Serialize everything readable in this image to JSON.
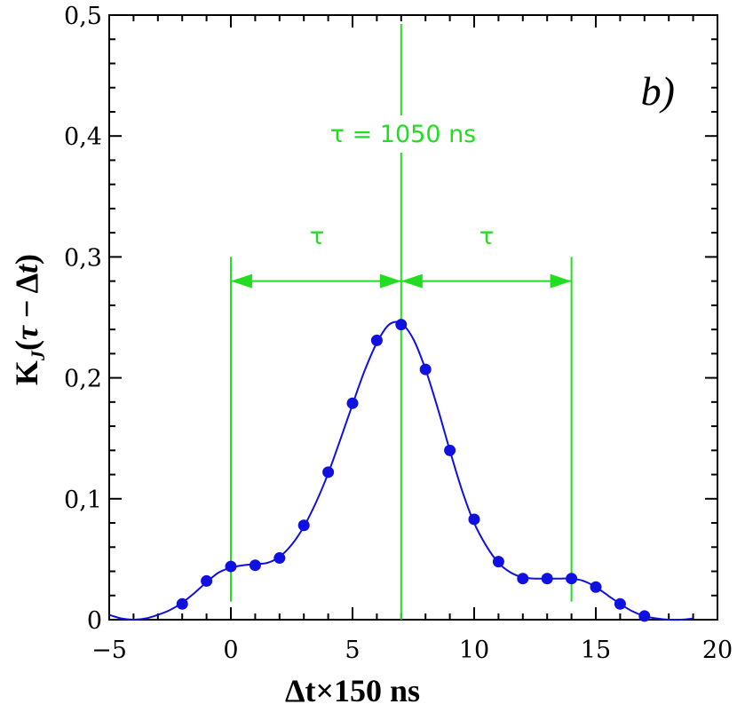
{
  "chart_data": {
    "type": "scatter",
    "xlabel": "Δt×150 ns",
    "ylabel": "K_J(τ − Δt)",
    "panel_label": "b)",
    "xlim": [
      -5,
      20
    ],
    "ylim": [
      0,
      0.5
    ],
    "x_ticks": [
      -5,
      0,
      5,
      10,
      15,
      20
    ],
    "x_tick_labels": [
      "−5",
      "0",
      "5",
      "10",
      "15",
      "20"
    ],
    "y_ticks": [
      0,
      0.1,
      0.2,
      0.3,
      0.4,
      0.5
    ],
    "y_tick_labels": [
      "0",
      "0,1",
      "0,2",
      "0,3",
      "0,4",
      "0,5"
    ],
    "grid": false,
    "colors": {
      "points": "#1010e0",
      "curve": "#1010e0",
      "annotation": "#22dd22"
    },
    "series": [
      {
        "kind": "points",
        "x": [
          -2,
          -1,
          0,
          1,
          2,
          3,
          4,
          5,
          6,
          7,
          8,
          9,
          10,
          11,
          12,
          13,
          14,
          15,
          16,
          17
        ],
        "y": [
          0.013,
          0.032,
          0.044,
          0.045,
          0.051,
          0.078,
          0.122,
          0.179,
          0.231,
          0.244,
          0.207,
          0.14,
          0.083,
          0.048,
          0.034,
          0.034,
          0.034,
          0.027,
          0.013,
          0.003
        ]
      },
      {
        "kind": "fit-curve",
        "x": [
          -5,
          -4.5,
          -4,
          -3.5,
          -3,
          -2.5,
          -2,
          -1.5,
          -1,
          -0.5,
          0,
          0.5,
          1,
          1.5,
          2,
          2.5,
          3,
          3.5,
          4,
          4.5,
          5,
          5.5,
          6,
          6.5,
          7,
          7.5,
          8,
          8.5,
          9,
          9.5,
          10,
          10.5,
          11,
          11.5,
          12,
          12.5,
          13,
          13.5,
          14,
          14.5,
          15,
          15.5,
          16,
          16.5,
          17,
          17.5,
          18,
          18.5,
          19
        ],
        "y": [
          0.004,
          0.001,
          0.0,
          0.001,
          0.004,
          0.008,
          0.014,
          0.022,
          0.031,
          0.039,
          0.043,
          0.045,
          0.046,
          0.047,
          0.052,
          0.062,
          0.077,
          0.097,
          0.121,
          0.149,
          0.178,
          0.206,
          0.229,
          0.244,
          0.245,
          0.232,
          0.207,
          0.175,
          0.14,
          0.107,
          0.08,
          0.061,
          0.047,
          0.039,
          0.035,
          0.034,
          0.034,
          0.034,
          0.034,
          0.032,
          0.027,
          0.02,
          0.013,
          0.007,
          0.003,
          0.001,
          0.0,
          0.0,
          0.001
        ]
      }
    ],
    "annotations": {
      "tau_label": "τ = 1050 ns",
      "left_arrow_label": "τ",
      "right_arrow_label": "τ",
      "center_x": 7,
      "left_x": 0,
      "right_x": 14,
      "arrow_y": 0.28,
      "side_lines_top_y": 0.3,
      "side_lines_bottom_y": 0.015
    }
  }
}
